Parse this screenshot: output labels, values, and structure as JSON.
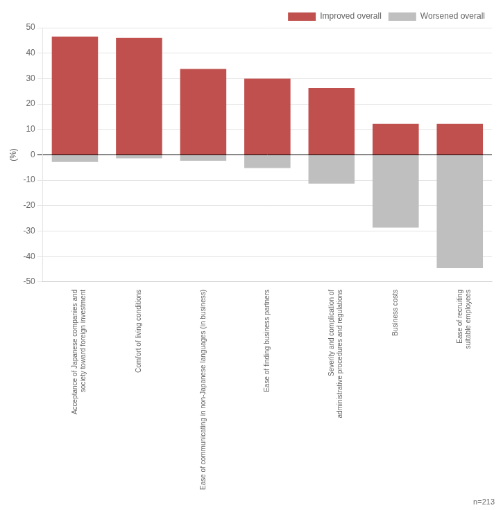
{
  "chart_data": {
    "type": "bar",
    "categories": [
      "Acceptance of Japanese companies and\nsociety toward foreign investment",
      "Comfort of living conditions",
      "Ease of communicating in non-Japanese languages (in business)",
      "Ease of finding business partners",
      "Severity and complication of\nadministrative procedures and regulations",
      "Business costs",
      "Ease of recruiting\nsuitable employees"
    ],
    "series": [
      {
        "name": "Improved overall",
        "color": "#c0504d",
        "values": [
          46.5,
          46.0,
          33.8,
          30.0,
          26.3,
          12.2,
          12.2
        ]
      },
      {
        "name": "Worsened overall",
        "color": "#bfbfbf",
        "values": [
          -2.8,
          -1.4,
          -2.3,
          -5.2,
          -11.3,
          -28.6,
          -44.6
        ]
      }
    ],
    "ylabel": "(%)",
    "ylim": [
      -50,
      50
    ],
    "yticks": [
      -50,
      -40,
      -30,
      -20,
      -10,
      0,
      10,
      20,
      30,
      40,
      50
    ],
    "grid": true,
    "legend": "upper right",
    "stacked": true,
    "annotation": "n=213"
  }
}
